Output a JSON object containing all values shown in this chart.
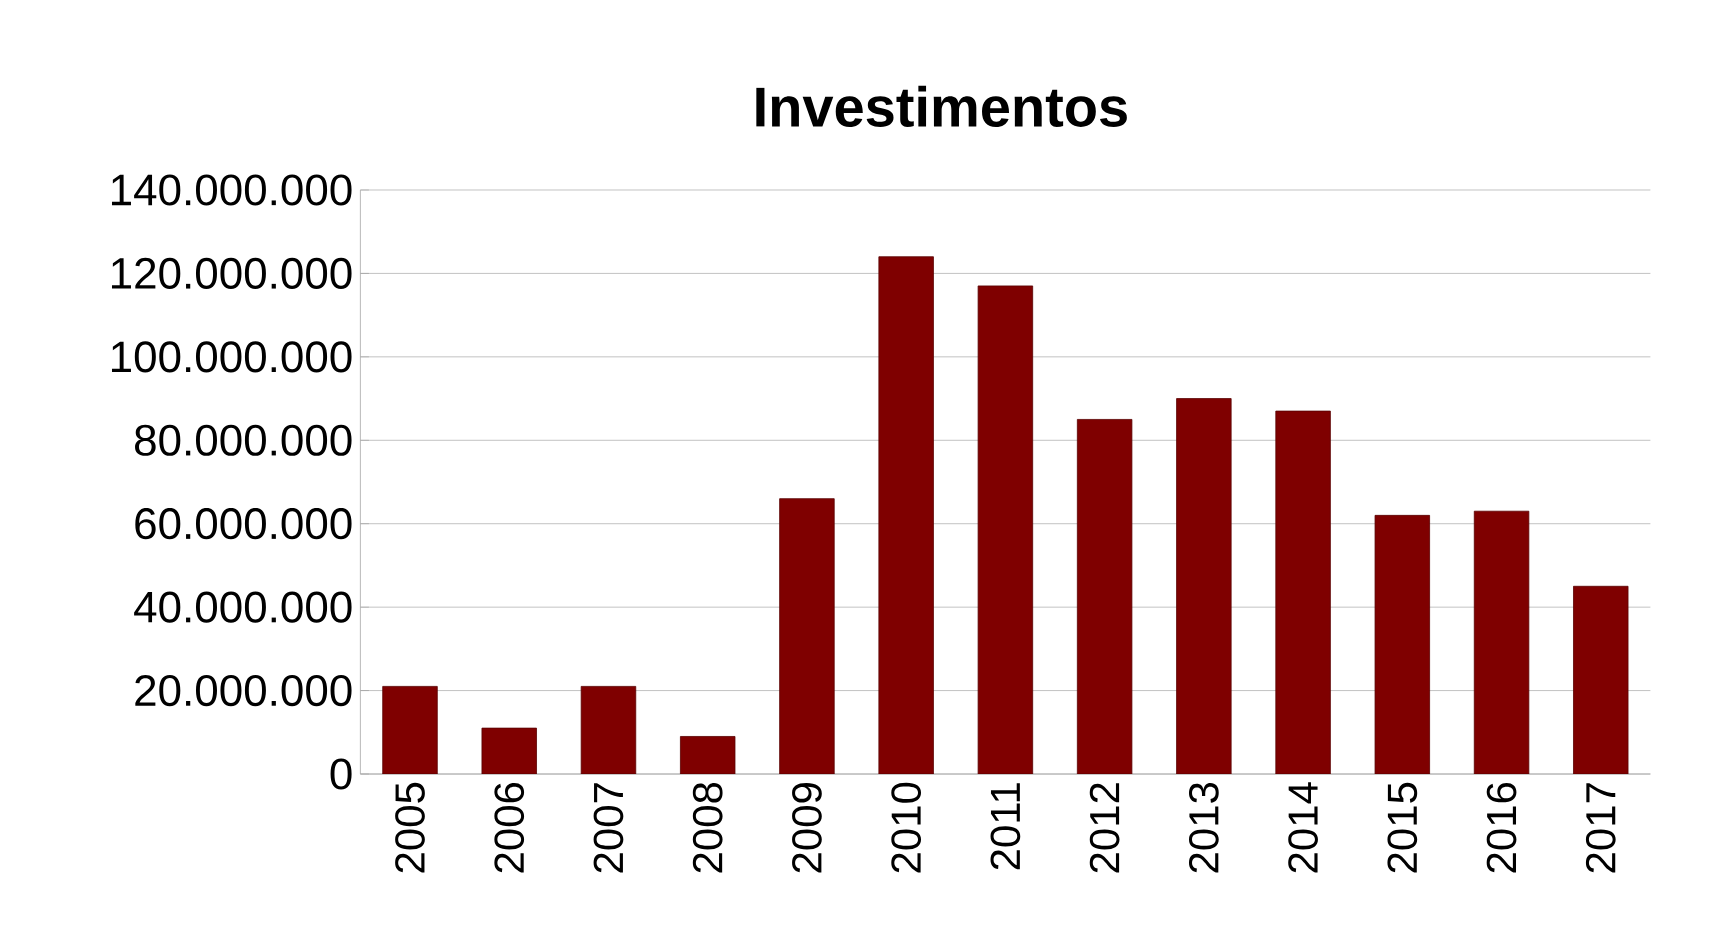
{
  "chart_data": {
    "type": "bar",
    "title": "Investimentos",
    "categories": [
      "2005",
      "2006",
      "2007",
      "2008",
      "2009",
      "2010",
      "2011",
      "2012",
      "2013",
      "2014",
      "2015",
      "2016",
      "2017"
    ],
    "values": [
      21000000,
      11000000,
      21000000,
      9000000,
      66000000,
      124000000,
      117000000,
      85000000,
      90000000,
      87000000,
      62000000,
      63000000,
      45000000
    ],
    "color": "#7f0000",
    "ylim": [
      0,
      140000000
    ],
    "yticks": [
      0,
      {
        "value": 20000000,
        "label": "20.000.000"
      },
      {
        "value": 40000000,
        "label": "40.000.000"
      },
      {
        "value": 60000000,
        "label": "60.000.000"
      },
      {
        "value": 80000000,
        "label": "80.000.000"
      },
      {
        "value": 100000000,
        "label": "100.000.000"
      },
      {
        "value": 120000000,
        "label": "120.000.000"
      },
      {
        "value": 140000000,
        "label": "140.000.000"
      }
    ],
    "grid": "y"
  }
}
